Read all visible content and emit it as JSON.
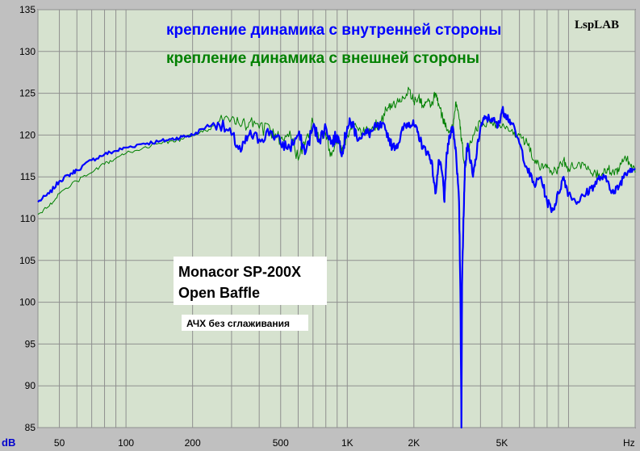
{
  "chart_data": {
    "type": "line",
    "title": "",
    "brand": "LspLAB",
    "xlabel": "Hz",
    "ylabel": "dB",
    "x_scale": "log",
    "xlim": [
      40,
      20000
    ],
    "ylim": [
      85,
      135
    ],
    "grid": true,
    "legend_position": "top-center",
    "y_ticks": [
      85,
      90,
      95,
      100,
      105,
      110,
      115,
      120,
      125,
      130,
      135
    ],
    "x_tick_labels": [
      {
        "f": 50,
        "label": "50"
      },
      {
        "f": 100,
        "label": "100"
      },
      {
        "f": 200,
        "label": "200"
      },
      {
        "f": 500,
        "label": "500"
      },
      {
        "f": 1000,
        "label": "1K"
      },
      {
        "f": 2000,
        "label": "2K"
      },
      {
        "f": 5000,
        "label": "5K"
      }
    ],
    "annotations": {
      "model": "Monacor SP-200X",
      "setup": "Open Baffle",
      "note": "АЧХ без сглаживания"
    },
    "colors": {
      "plot_bg": "#d6e2cf",
      "grid": "#8f8f8f",
      "frame": "#000000",
      "panel_bg": "#c0c0c0",
      "annotation_bg": "#ffffff"
    },
    "series": [
      {
        "name": "крепление динамика с внутренней стороны",
        "color": "#0000ff",
        "width": 2.2,
        "points": [
          [
            40,
            112
          ],
          [
            45,
            113
          ],
          [
            50,
            114.5
          ],
          [
            55,
            115.2
          ],
          [
            60,
            115.8
          ],
          [
            70,
            117
          ],
          [
            80,
            117.7
          ],
          [
            90,
            118.1
          ],
          [
            100,
            118.5
          ],
          [
            120,
            119
          ],
          [
            140,
            119.2
          ],
          [
            160,
            119.5
          ],
          [
            180,
            119.8
          ],
          [
            200,
            120
          ],
          [
            230,
            121
          ],
          [
            260,
            121.5
          ],
          [
            300,
            120
          ],
          [
            330,
            118
          ],
          [
            360,
            120
          ],
          [
            400,
            119.5
          ],
          [
            450,
            120.5
          ],
          [
            500,
            119
          ],
          [
            550,
            118.5
          ],
          [
            600,
            120
          ],
          [
            650,
            118
          ],
          [
            700,
            121
          ],
          [
            750,
            119.5
          ],
          [
            800,
            121
          ],
          [
            850,
            119
          ],
          [
            900,
            120
          ],
          [
            950,
            118
          ],
          [
            1000,
            121
          ],
          [
            1050,
            121.5
          ],
          [
            1100,
            120
          ],
          [
            1200,
            120
          ],
          [
            1300,
            120.5
          ],
          [
            1400,
            121
          ],
          [
            1500,
            120.5
          ],
          [
            1600,
            118.5
          ],
          [
            1700,
            119
          ],
          [
            1800,
            121
          ],
          [
            1900,
            121.5
          ],
          [
            2000,
            121.2
          ],
          [
            2100,
            120
          ],
          [
            2200,
            118.5
          ],
          [
            2300,
            118
          ],
          [
            2400,
            117
          ],
          [
            2500,
            113
          ],
          [
            2600,
            117
          ],
          [
            2700,
            115
          ],
          [
            2750,
            112
          ],
          [
            2800,
            117
          ],
          [
            2900,
            120
          ],
          [
            3000,
            121
          ],
          [
            3100,
            118
          ],
          [
            3200,
            112
          ],
          [
            3250,
            100
          ],
          [
            3280,
            85
          ],
          [
            3300,
            102
          ],
          [
            3350,
            110
          ],
          [
            3400,
            116
          ],
          [
            3500,
            119
          ],
          [
            3700,
            115
          ],
          [
            3800,
            117
          ],
          [
            4000,
            121
          ],
          [
            4200,
            122
          ],
          [
            4500,
            122
          ],
          [
            4800,
            121
          ],
          [
            5000,
            123
          ],
          [
            5200,
            122.5
          ],
          [
            5500,
            121.5
          ],
          [
            6000,
            119
          ],
          [
            6500,
            116
          ],
          [
            7000,
            114
          ],
          [
            7500,
            115
          ],
          [
            8000,
            112
          ],
          [
            8500,
            111
          ],
          [
            9000,
            113
          ],
          [
            9500,
            115
          ],
          [
            10000,
            113
          ],
          [
            11000,
            112
          ],
          [
            12000,
            113
          ],
          [
            13000,
            114
          ],
          [
            14000,
            115
          ],
          [
            15000,
            114.5
          ],
          [
            16000,
            113
          ],
          [
            17000,
            114
          ],
          [
            18000,
            115.5
          ],
          [
            19000,
            116
          ],
          [
            20000,
            116
          ]
        ]
      },
      {
        "name": "крепление динамика с внешней стороны",
        "color": "#008000",
        "width": 1,
        "points": [
          [
            40,
            110.5
          ],
          [
            45,
            111.5
          ],
          [
            50,
            113
          ],
          [
            60,
            114.5
          ],
          [
            70,
            115.5
          ],
          [
            80,
            116.5
          ],
          [
            90,
            117.2
          ],
          [
            100,
            117.8
          ],
          [
            120,
            118.5
          ],
          [
            140,
            119
          ],
          [
            160,
            119.3
          ],
          [
            180,
            119.5
          ],
          [
            200,
            120
          ],
          [
            230,
            120.5
          ],
          [
            260,
            121.5
          ],
          [
            300,
            122
          ],
          [
            330,
            121
          ],
          [
            360,
            121.5
          ],
          [
            400,
            120.8
          ],
          [
            450,
            120.5
          ],
          [
            500,
            119.5
          ],
          [
            550,
            120.5
          ],
          [
            600,
            117
          ],
          [
            650,
            119.5
          ],
          [
            700,
            121.5
          ],
          [
            750,
            119.5
          ],
          [
            800,
            120
          ],
          [
            850,
            117.5
          ],
          [
            900,
            120
          ],
          [
            950,
            118.5
          ],
          [
            1000,
            120
          ],
          [
            1100,
            121
          ],
          [
            1200,
            120
          ],
          [
            1300,
            121
          ],
          [
            1400,
            121.5
          ],
          [
            1500,
            123
          ],
          [
            1600,
            123.5
          ],
          [
            1700,
            124
          ],
          [
            1800,
            124.5
          ],
          [
            1900,
            125.5
          ],
          [
            2000,
            124
          ],
          [
            2100,
            124.5
          ],
          [
            2200,
            123.5
          ],
          [
            2300,
            124
          ],
          [
            2400,
            123.5
          ],
          [
            2500,
            125
          ],
          [
            2600,
            123.5
          ],
          [
            2700,
            122
          ],
          [
            2800,
            121
          ],
          [
            2900,
            120.5
          ],
          [
            3000,
            121
          ],
          [
            3100,
            124
          ],
          [
            3200,
            122
          ],
          [
            3300,
            119
          ],
          [
            3400,
            116
          ],
          [
            3500,
            118
          ],
          [
            3700,
            120
          ],
          [
            4000,
            121.5
          ],
          [
            4500,
            121.5
          ],
          [
            5000,
            121
          ],
          [
            5500,
            120.5
          ],
          [
            6000,
            120
          ],
          [
            6500,
            119
          ],
          [
            7000,
            117
          ],
          [
            7500,
            116
          ],
          [
            8000,
            116.5
          ],
          [
            8500,
            115.5
          ],
          [
            9000,
            116
          ],
          [
            9500,
            117
          ],
          [
            10000,
            116
          ],
          [
            11000,
            116.5
          ],
          [
            12000,
            116
          ],
          [
            13000,
            115.5
          ],
          [
            14000,
            115
          ],
          [
            15000,
            116
          ],
          [
            16000,
            115.5
          ],
          [
            17000,
            116
          ],
          [
            18000,
            117.5
          ],
          [
            19000,
            116.5
          ],
          [
            20000,
            115.5
          ]
        ]
      }
    ]
  }
}
